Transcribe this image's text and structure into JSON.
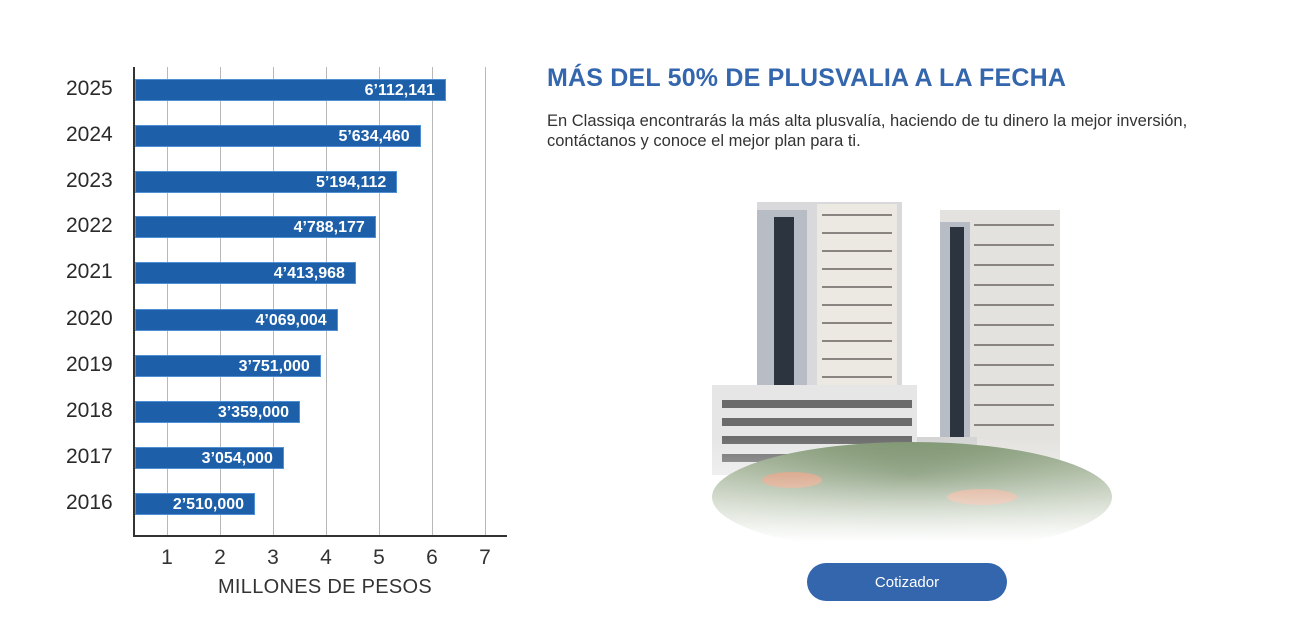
{
  "chart_data": {
    "type": "bar",
    "orientation": "horizontal",
    "title": "",
    "xlabel": "MILLONES DE PESOS",
    "ylabel": "",
    "xlim": [
      0,
      7
    ],
    "x_ticks": [
      "1",
      "2",
      "3",
      "4",
      "5",
      "6",
      "7"
    ],
    "grid": true,
    "categories": [
      "2025",
      "2024",
      "2023",
      "2022",
      "2021",
      "2020",
      "2019",
      "2018",
      "2017",
      "2016"
    ],
    "values": [
      6112141,
      5634460,
      5194112,
      4788177,
      4413968,
      4069004,
      3751000,
      3359000,
      3054000,
      2510000
    ],
    "value_labels": [
      "6’112,141",
      "5’634,460",
      "5’194,112",
      "4’788,177",
      "4’413,968",
      "4’069,004",
      "3’751,000",
      "3’359,000",
      "3’054,000",
      "2’510,000"
    ],
    "bar_color": "#1d5fa8"
  },
  "section": {
    "title": "MÁS DEL 50% DE PLUSVALIA A LA FECHA",
    "description": "En Classiqa encontrarás la más alta plusvalía, haciendo de tu dinero la mejor inversión, contáctanos y conoce el mejor plan para ti.",
    "image_alt": "Classiqa towers building photo",
    "cta_label": "Cotizador",
    "accent_color": "#3466ad"
  }
}
